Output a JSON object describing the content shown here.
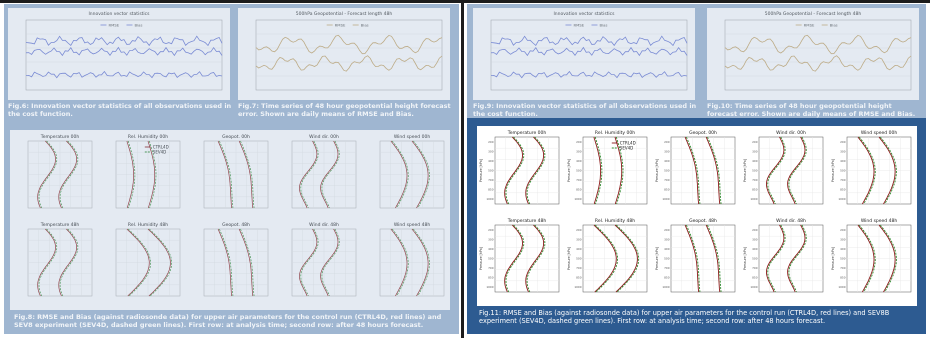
{
  "left": {
    "fig6": {
      "caption": "Fig.6: Innovation vector statistics of all observations used in the cost function.",
      "plot_title": "Innovation vector statistics",
      "legend": [
        "RMSE",
        "Bias"
      ]
    },
    "fig7": {
      "caption": "Fig.7: Time series of 48 hour geopotential height forecast error. Shown are daily means of RMSE and Bias.",
      "plot_title": "500hPa Geopotential - Forecast length 48h",
      "legend": [
        "RMSE",
        "Bias"
      ]
    },
    "fig8": {
      "caption": "Fig.8: RMSE and Bias (against radiosonde data) for upper air parameters for the control run (CTRL4D, red lines) and SEV8 experiment (SEV4D, dashed green lines). First row: at analysis time; second row: after 48 hours forecast.",
      "legend": [
        "CTRL4D",
        "SEV4D"
      ],
      "row1_titles": [
        "Temperature 00h",
        "Rel. Humidity 00h",
        "Geopot. 00h",
        "Wind dir. 00h",
        "Wind speed 00h"
      ],
      "row2_titles": [
        "Temperature 48h",
        "Rel. Humidity 48h",
        "Geopot. 48h",
        "Wind dir. 48h",
        "Wind speed 48h"
      ]
    }
  },
  "right": {
    "fig9": {
      "caption": "Fig.9: Innovation vector statistics of all observations used in the cost function.",
      "plot_title": "Innovation vector statistics",
      "legend": [
        "RMSE",
        "Bias"
      ]
    },
    "fig10": {
      "caption": "Fig.10: Time series of 48 hour geopotential height forecast error. Shown are daily means of RMSE and Bias.",
      "plot_title": "500hPa Geopotential - Forecast length 48h",
      "legend": [
        "RMSE",
        "Bias"
      ]
    },
    "fig11": {
      "caption": "Fig.11: RMSE and Bias (against radiosonde data) for upper air parameters for the control run (CTRL4D, red lines) and SEV8B experiment (SEV4D, dashed green lines). First row: at analysis time; second row: after 48 hours forecast.",
      "legend": [
        "CTRL4D",
        "SEV4D"
      ],
      "row1_titles": [
        "Temperature 00h",
        "Rel. Humidity 00h",
        "Geopot. 00h",
        "Wind dir. 00h",
        "Wind speed 00h"
      ],
      "row2_titles": [
        "Temperature 48h",
        "Rel. Humidity 48h",
        "Geopot. 48h",
        "Wind dir. 48h",
        "Wind speed 48h"
      ],
      "ylabel": "Pressure [hPa]",
      "y_ticks": [
        "200",
        "300",
        "400",
        "500",
        "700",
        "850",
        "1000"
      ]
    }
  },
  "colors": {
    "pane_background": "#9fb6d1",
    "highlight_background": "#2d5b91",
    "ctrl_line": "#8b1a1a",
    "sev_line": "#2e8b2e",
    "rmse_line": "#6c7bd6",
    "bias_line": "#c9a86b"
  }
}
